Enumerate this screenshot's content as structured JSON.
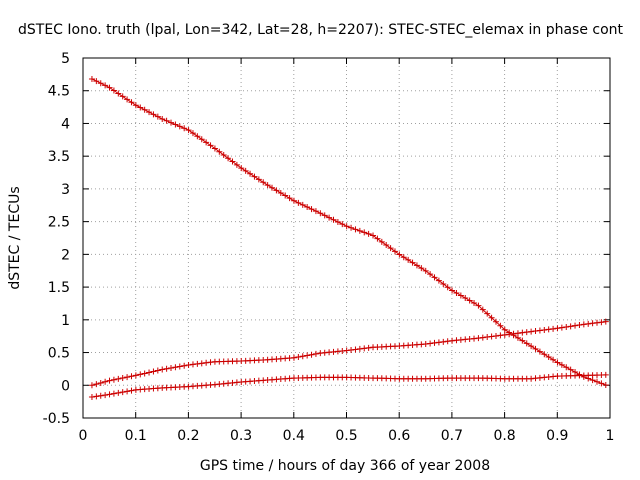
{
  "chart_data": {
    "type": "line",
    "title": "dSTEC Iono. truth (lpal, Lon=342, Lat=28, h=2207): STEC-STEC_elemax in phase cont",
    "xlabel": "GPS time / hours of day 366 of year 2008",
    "ylabel": "dSTEC  / TECUs",
    "xlim": [
      0,
      1
    ],
    "ylim": [
      -0.5,
      5
    ],
    "xticks": [
      "0",
      "0.1",
      "0.2",
      "0.3",
      "0.4",
      "0.5",
      "0.6",
      "0.7",
      "0.8",
      "0.9",
      "1"
    ],
    "yticks": [
      "-0.5",
      "0",
      "0.5",
      "1",
      "1.5",
      "2",
      "2.5",
      "3",
      "3.5",
      "4",
      "4.5",
      "5"
    ],
    "grid": true,
    "legend": "none",
    "marker": "plus",
    "color": "#cc0000",
    "series": [
      {
        "x": [
          0.017,
          0.05,
          0.1,
          0.15,
          0.2,
          0.25,
          0.3,
          0.35,
          0.4,
          0.45,
          0.5,
          0.55,
          0.6,
          0.65,
          0.7,
          0.75,
          0.8,
          0.85,
          0.9,
          0.95,
          1.0
        ],
        "values": [
          4.68,
          4.55,
          4.28,
          4.07,
          3.9,
          3.62,
          3.32,
          3.06,
          2.82,
          2.63,
          2.43,
          2.29,
          2.0,
          1.75,
          1.45,
          1.22,
          0.85,
          0.6,
          0.35,
          0.13,
          -0.02
        ]
      },
      {
        "x": [
          0.017,
          0.05,
          0.1,
          0.15,
          0.2,
          0.25,
          0.3,
          0.35,
          0.4,
          0.45,
          0.5,
          0.55,
          0.6,
          0.65,
          0.7,
          0.75,
          0.8,
          0.85,
          0.9,
          0.95,
          1.0
        ],
        "values": [
          0.0,
          0.07,
          0.15,
          0.24,
          0.31,
          0.36,
          0.37,
          0.39,
          0.42,
          0.49,
          0.53,
          0.58,
          0.6,
          0.63,
          0.68,
          0.72,
          0.77,
          0.82,
          0.87,
          0.93,
          0.98
        ]
      },
      {
        "x": [
          0.017,
          0.05,
          0.1,
          0.15,
          0.2,
          0.25,
          0.3,
          0.35,
          0.4,
          0.45,
          0.5,
          0.55,
          0.6,
          0.65,
          0.7,
          0.75,
          0.8,
          0.85,
          0.9,
          0.95,
          1.0
        ],
        "values": [
          -0.18,
          -0.14,
          -0.07,
          -0.04,
          -0.02,
          0.01,
          0.05,
          0.08,
          0.11,
          0.12,
          0.12,
          0.11,
          0.1,
          0.1,
          0.11,
          0.11,
          0.1,
          0.1,
          0.14,
          0.15,
          0.16
        ]
      }
    ]
  }
}
